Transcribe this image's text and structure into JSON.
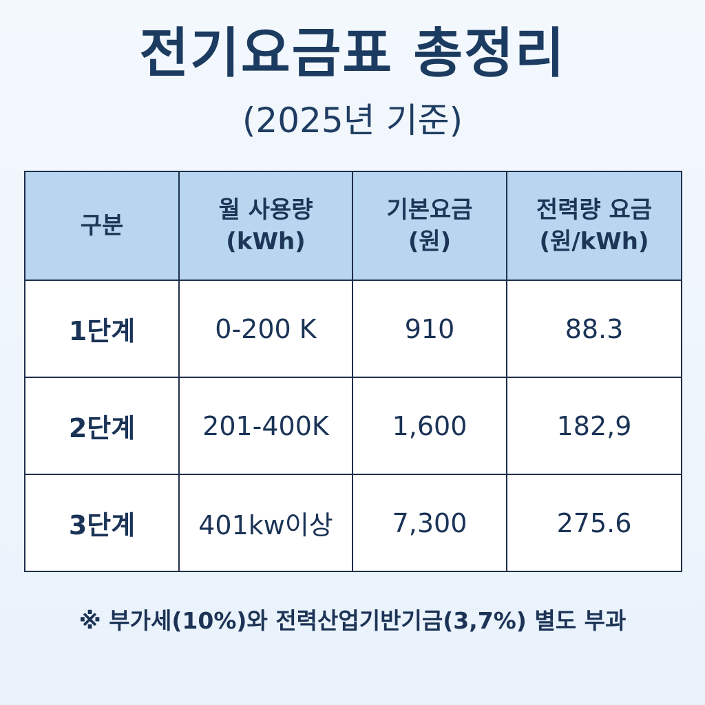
{
  "title": "전기요금표 총정리",
  "subtitle": "(2025년 기준)",
  "table": {
    "headers": [
      {
        "line1": "구분",
        "line2": ""
      },
      {
        "line1": "월 사용량",
        "line2": "(kWh)"
      },
      {
        "line1": "기본요금",
        "line2": "(원)"
      },
      {
        "line1": "전력량 요금",
        "line2": "(원/kWh)"
      }
    ],
    "rows": [
      {
        "stage": "1단계",
        "usage": "0-200 K",
        "base_fee": "910",
        "energy_rate": "88.3"
      },
      {
        "stage": "2단계",
        "usage": "201-400K",
        "base_fee": "1,600",
        "energy_rate": "182,9"
      },
      {
        "stage": "3단계",
        "usage": "401kw이상",
        "base_fee": "7,300",
        "energy_rate": "275.6"
      }
    ]
  },
  "note": "※ 부가세(10%)와 전력산업기반기금(3,7%) 별도 부과",
  "colors": {
    "title": "#1c3b60",
    "header_bg": "#b8d6ef",
    "border": "#1f2f4a",
    "background": "#f3f8fd"
  }
}
